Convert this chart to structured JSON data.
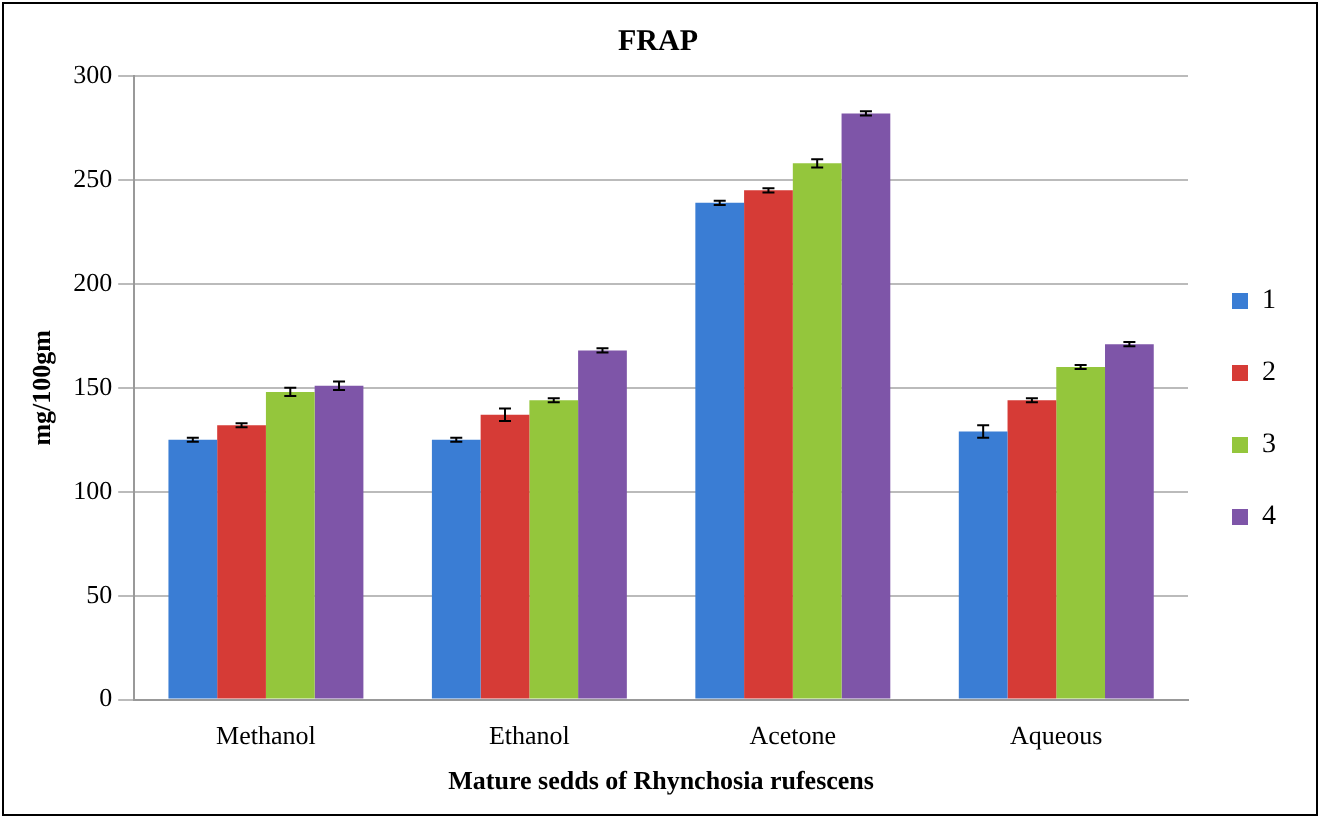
{
  "chart_data": {
    "type": "bar",
    "title": "FRAP",
    "xlabel": "Mature sedds of Rhynchosia rufescens",
    "ylabel": "mg/100gm",
    "categories": [
      "Methanol",
      "Ethanol",
      "Acetone",
      "Aqueous"
    ],
    "series": [
      {
        "name": "1",
        "color": "#3a7dd4",
        "values": [
          125,
          125,
          239,
          129
        ],
        "errors": [
          1,
          1,
          1,
          3
        ]
      },
      {
        "name": "2",
        "color": "#d63b36",
        "values": [
          132,
          137,
          245,
          144
        ],
        "errors": [
          1,
          3,
          1,
          1
        ]
      },
      {
        "name": "3",
        "color": "#94c63c",
        "values": [
          148,
          144,
          258,
          160
        ],
        "errors": [
          2,
          1,
          2,
          1
        ]
      },
      {
        "name": "4",
        "color": "#7e55a8",
        "values": [
          151,
          168,
          282,
          171
        ],
        "errors": [
          2,
          1,
          1,
          1
        ]
      }
    ],
    "ylim": [
      0,
      300
    ],
    "yticks": [
      0,
      50,
      100,
      150,
      200,
      250,
      300
    ],
    "grid": "y",
    "legend": "right"
  }
}
